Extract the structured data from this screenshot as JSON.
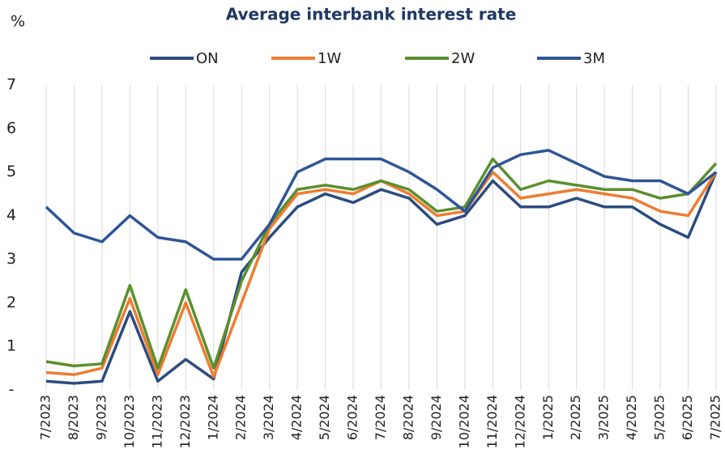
{
  "chart_data": {
    "type": "line",
    "title": "Average interbank interest rate",
    "y_label": "%",
    "categories": [
      "7/2023",
      "8/2023",
      "9/2023",
      "10/2023",
      "11/2023",
      "12/2023",
      "1/2024",
      "2/2024",
      "3/2024",
      "4/2024",
      "5/2024",
      "6/2024",
      "7/2024",
      "8/2024",
      "9/2024",
      "10/2024",
      "11/2024",
      "12/2024",
      "1/2025",
      "2/2025",
      "3/2025",
      "4/2025",
      "5/2025",
      "6/2025",
      "7/2025"
    ],
    "series": [
      {
        "name": "ON",
        "color": "#2b4c7e",
        "values": [
          0.2,
          0.15,
          0.2,
          1.8,
          0.2,
          0.7,
          0.25,
          2.7,
          3.5,
          4.2,
          4.5,
          4.3,
          4.6,
          4.4,
          3.8,
          4.0,
          4.8,
          4.2,
          4.2,
          4.4,
          4.2,
          4.2,
          3.8,
          3.5,
          5.0
        ]
      },
      {
        "name": "1W",
        "color": "#ed7d31",
        "values": [
          0.4,
          0.35,
          0.5,
          2.1,
          0.35,
          2.0,
          0.3,
          2.0,
          3.7,
          4.5,
          4.6,
          4.5,
          4.8,
          4.5,
          4.0,
          4.1,
          5.0,
          4.4,
          4.5,
          4.6,
          4.5,
          4.4,
          4.1,
          4.0,
          5.0
        ]
      },
      {
        "name": "2W",
        "color": "#5b8f2e",
        "values": [
          0.65,
          0.55,
          0.6,
          2.4,
          0.5,
          2.3,
          0.5,
          2.5,
          3.8,
          4.6,
          4.7,
          4.6,
          4.8,
          4.6,
          4.1,
          4.2,
          5.3,
          4.6,
          4.8,
          4.7,
          4.6,
          4.6,
          4.4,
          4.5,
          5.2
        ]
      },
      {
        "name": "3M",
        "color": "#2f5597",
        "values": [
          4.2,
          3.6,
          3.4,
          4.0,
          3.5,
          3.4,
          3.0,
          3.0,
          3.8,
          5.0,
          5.3,
          5.3,
          5.3,
          5.0,
          4.6,
          4.1,
          5.1,
          5.4,
          5.5,
          5.2,
          4.9,
          4.8,
          4.8,
          4.5,
          5.0
        ]
      }
    ],
    "ylim": [
      0,
      7
    ],
    "yticks": [
      {
        "value": 0,
        "label": "-"
      },
      1,
      2,
      3,
      4,
      5,
      6,
      7
    ],
    "grid": true,
    "legend": "top"
  }
}
